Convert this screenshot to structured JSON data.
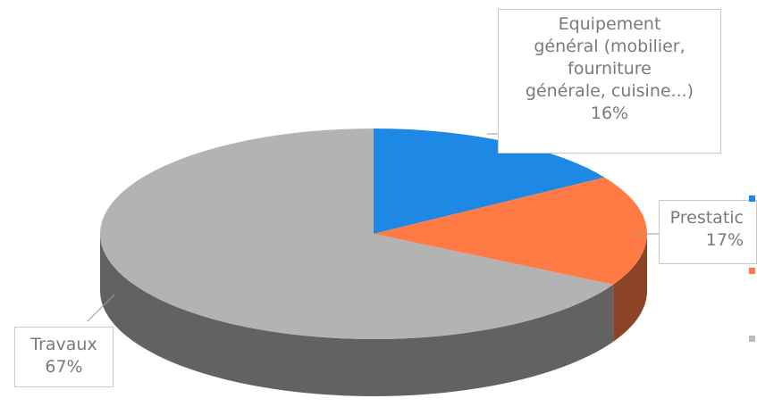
{
  "chart_data": {
    "type": "pie",
    "style": "3d",
    "slices": [
      {
        "label_lines": [
          "Equipement",
          "général (mobilier,",
          "fourniture",
          "générale, cuisine...)"
        ],
        "pct_label": "16%",
        "value": 16,
        "color": "#1e88e5"
      },
      {
        "label_lines": [
          "Prestatic"
        ],
        "pct_label": "17%",
        "value": 17,
        "color": "#ff7a45"
      },
      {
        "label_lines": [
          "Travaux"
        ],
        "pct_label": "67%",
        "value": 67,
        "color": "#b3b3b3"
      }
    ],
    "legend": {
      "placement": "right (clipped)",
      "colors": [
        "#1e88e5",
        "#ff7a45",
        "#bdbdbd"
      ]
    }
  }
}
